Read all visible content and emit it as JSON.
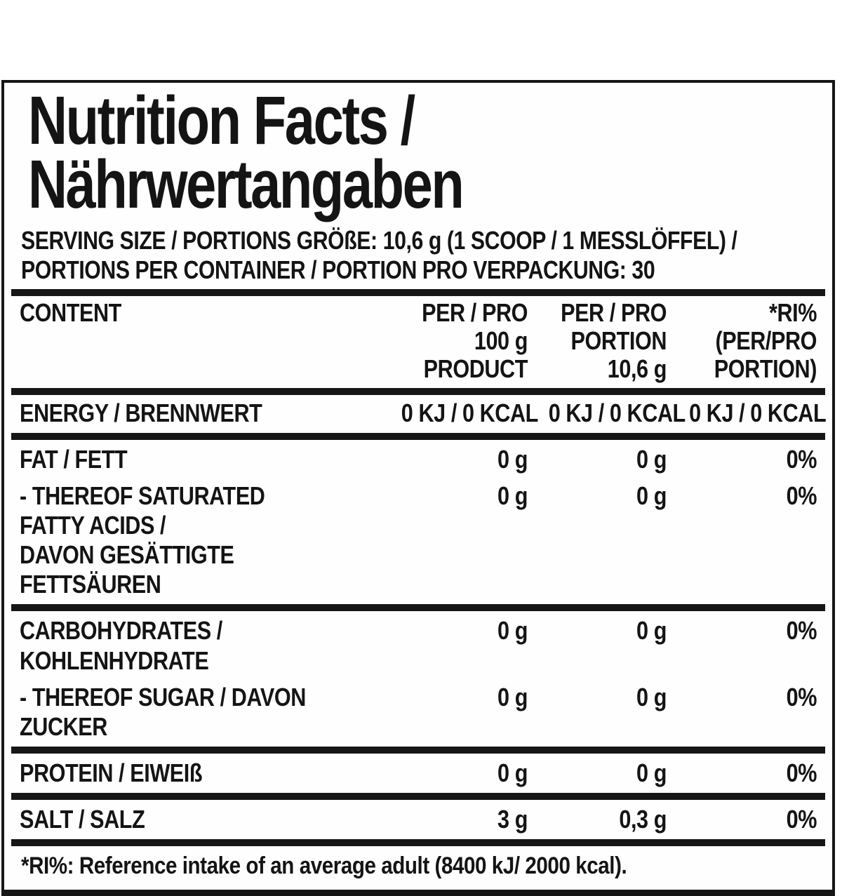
{
  "colors": {
    "text": "#141414",
    "background": "#ffffff",
    "border": "#161616"
  },
  "title": {
    "line1": "Nutrition Facts /",
    "line2": "Nährwertangaben"
  },
  "serving_info": {
    "line1": "SERVING SIZE / PORTIONS GRÖßE: 10,6 g (1 SCOOP / 1 MESSLÖFFEL) /",
    "line2": "PORTIONS PER CONTAINER / PORTION PRO VERPACKUNG: 30"
  },
  "table": {
    "header": {
      "content_label": "CONTENT",
      "col1_lines": [
        "PER / PRO",
        "100 g",
        "PRODUCT"
      ],
      "col2_lines": [
        "PER / PRO",
        "PORTION",
        "10,6 g"
      ],
      "col3_lines": [
        "*RI%",
        "(PER/PRO",
        "PORTION)"
      ]
    },
    "rows": [
      {
        "label": "ENERGY / BRENNWERT",
        "per100": "0 KJ / 0 KCAL",
        "portion": "0 KJ / 0 KCAL",
        "ri": "0 KJ / 0 KCAL",
        "divider_after": "thick"
      },
      {
        "label": "FAT / FETT",
        "per100": "0 g",
        "portion": "0 g",
        "ri": "0%",
        "divider_after": "none"
      },
      {
        "label": "- THEREOF SATURATED FATTY ACIDS /\nDAVON GESÄTTIGTE FETTSÄUREN",
        "per100": "0 g",
        "portion": "0 g",
        "ri": "0%",
        "divider_after": "thick"
      },
      {
        "label": "CARBOHYDRATES / KOHLENHYDRATE",
        "per100": "0 g",
        "portion": "0 g",
        "ri": "0%",
        "divider_after": "none"
      },
      {
        "label": "- THEREOF SUGAR / DAVON ZUCKER",
        "per100": "0 g",
        "portion": "0 g",
        "ri": "0%",
        "divider_after": "thick"
      },
      {
        "label": "PROTEIN / EIWEIß",
        "per100": "0 g",
        "portion": "0 g",
        "ri": "0%",
        "divider_after": "thick"
      },
      {
        "label": "SALT / SALZ",
        "per100": "3 g",
        "portion": "0,3 g",
        "ri": "0%",
        "divider_after": "thick"
      }
    ]
  },
  "footnote": "*RI%: Reference intake of an average adult (8400 kJ/ 2000 kcal)."
}
